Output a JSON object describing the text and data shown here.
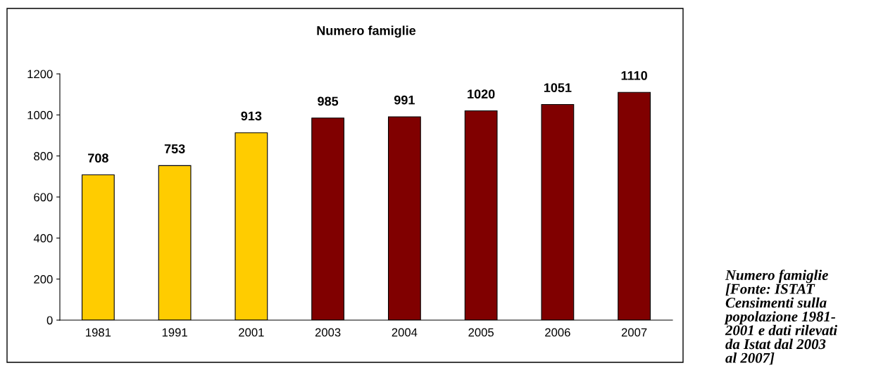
{
  "chart_data": {
    "type": "bar",
    "title": "Numero famiglie",
    "categories": [
      "1981",
      "1991",
      "2001",
      "2003",
      "2004",
      "2005",
      "2006",
      "2007"
    ],
    "values": [
      708,
      753,
      913,
      985,
      991,
      1020,
      1051,
      1110
    ],
    "colors": [
      "#ffcc00",
      "#ffcc00",
      "#ffcc00",
      "#800000",
      "#800000",
      "#800000",
      "#800000",
      "#800000"
    ],
    "ylim": [
      0,
      1200
    ],
    "yticks": [
      0,
      200,
      400,
      600,
      800,
      1000,
      1200
    ],
    "data_labels": true,
    "grid": false,
    "annotations": [
      "Numero famiglie\n[Fonte: ISTAT\nCensimenti sulla\npopolazione 1981-\n2001 e dati rilevati\nda Istat dal 2003\nal 2007]"
    ]
  }
}
